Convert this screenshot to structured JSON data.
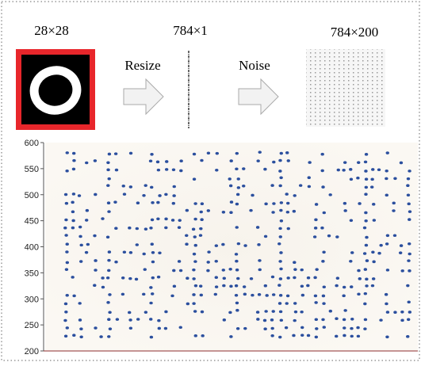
{
  "header": {
    "size_input": "28×28",
    "size_vector": "784×1",
    "size_matrix": "784×200",
    "step_resize": "Resize",
    "step_noise": "Noise"
  },
  "chart_data": {
    "type": "scatter",
    "ylim": [
      200,
      600
    ],
    "yticks": [
      200,
      250,
      300,
      350,
      400,
      450,
      500,
      550,
      600
    ],
    "color": "#2b4f9e"
  }
}
